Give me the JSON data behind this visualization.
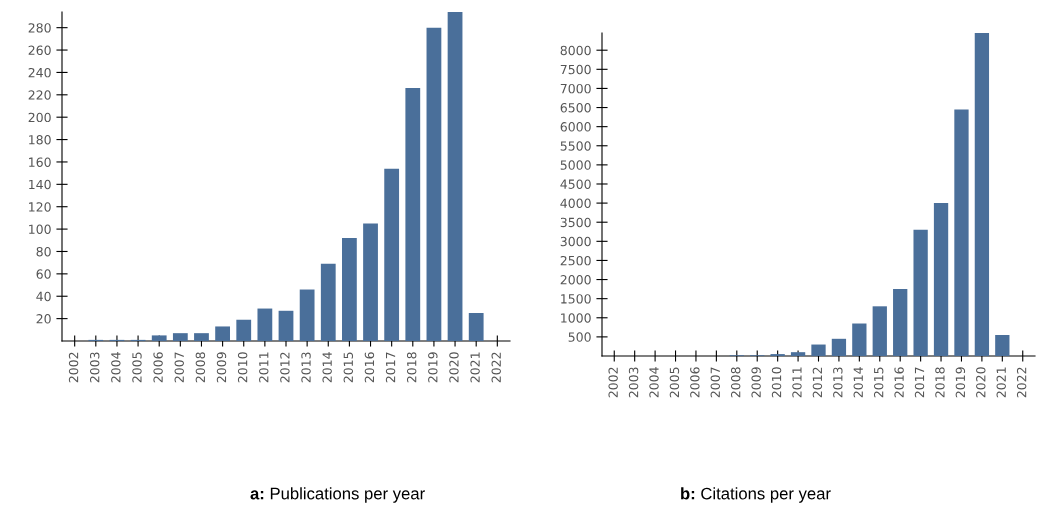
{
  "chart_data": [
    {
      "type": "bar",
      "title": "a: Publications per year",
      "categories": [
        "2002",
        "2003",
        "2004",
        "2005",
        "2006",
        "2007",
        "2008",
        "2009",
        "2010",
        "2011",
        "2012",
        "2013",
        "2014",
        "2015",
        "2016",
        "2017",
        "2018",
        "2019",
        "2020",
        "2021",
        "2022"
      ],
      "values": [
        0,
        1,
        1,
        1,
        5,
        7,
        7,
        13,
        19,
        29,
        27,
        46,
        69,
        92,
        105,
        154,
        226,
        280,
        294,
        25,
        0
      ],
      "color": "#4a6f9a",
      "ylim": [
        0,
        294
      ],
      "yticks": [
        20,
        40,
        60,
        80,
        100,
        120,
        140,
        160,
        180,
        200,
        220,
        240,
        260,
        280
      ],
      "grid": false
    },
    {
      "type": "bar",
      "title": "b: Citations per year",
      "categories": [
        "2002",
        "2003",
        "2004",
        "2005",
        "2006",
        "2007",
        "2008",
        "2009",
        "2010",
        "2011",
        "2012",
        "2013",
        "2014",
        "2015",
        "2016",
        "2017",
        "2018",
        "2019",
        "2020",
        "2021",
        "2022"
      ],
      "values": [
        0,
        0,
        0,
        0,
        0,
        0,
        20,
        20,
        50,
        100,
        300,
        450,
        850,
        1300,
        1750,
        3300,
        4000,
        6450,
        8450,
        550,
        0
      ],
      "color": "#4a6f9a",
      "ylim": [
        0,
        8450
      ],
      "yticks": [
        500,
        1000,
        1500,
        2000,
        2500,
        3000,
        3500,
        4000,
        4500,
        5000,
        5500,
        6000,
        6500,
        7000,
        7500,
        8000
      ],
      "grid": false
    }
  ]
}
